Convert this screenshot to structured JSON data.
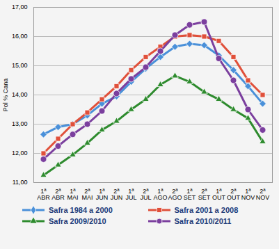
{
  "chart_data": {
    "type": "line",
    "y_label": "Pol % Cana",
    "categories": [
      "1ª\nABR",
      "2ª\nABR",
      "1ª\nMAI",
      "2ª\nMAI",
      "1ª\nJUN",
      "2ª\nJUN",
      "1ª\nJUL",
      "2ª\nJUL",
      "1ª\nAGO",
      "2ª\nAGO",
      "1ª\nSET",
      "2ª\nSET",
      "1ª\nOUT",
      "2ª\nOUT",
      "1ª\nNOV",
      "2ª\nNOV"
    ],
    "series": [
      {
        "name": "Safra 1984 a 2000",
        "color": "#4a90d9",
        "marker": "diamond",
        "values": [
          12.65,
          12.9,
          13.0,
          13.3,
          13.7,
          13.95,
          14.45,
          14.9,
          15.3,
          15.65,
          15.75,
          15.7,
          15.35,
          14.85,
          14.3,
          13.7
        ]
      },
      {
        "name": "Safra 2001 a 2008",
        "color": "#e0503a",
        "marker": "square",
        "values": [
          12.0,
          12.5,
          13.0,
          13.4,
          13.85,
          14.3,
          14.85,
          15.3,
          15.65,
          16.0,
          16.05,
          16.0,
          15.85,
          15.3,
          14.5,
          14.0
        ]
      },
      {
        "name": "Safra 2009/2010",
        "color": "#2e8b2e",
        "marker": "triangle",
        "values": [
          11.25,
          11.6,
          11.95,
          12.35,
          12.8,
          13.1,
          13.5,
          13.85,
          14.35,
          14.65,
          14.45,
          14.1,
          13.85,
          13.5,
          13.2,
          12.4
        ]
      },
      {
        "name": "Safra 2010/2011",
        "color": "#7b3f9e",
        "marker": "circle",
        "values": [
          11.8,
          12.25,
          12.65,
          13.0,
          13.45,
          14.05,
          14.55,
          14.95,
          15.5,
          16.05,
          16.4,
          16.5,
          15.25,
          14.5,
          13.5,
          12.8
        ]
      }
    ],
    "ylim": [
      11,
      17
    ],
    "yticks": [
      {
        "value": 11,
        "label": "11,00"
      },
      {
        "value": 12,
        "label": "12,00"
      },
      {
        "value": 13,
        "label": "13,00"
      },
      {
        "value": 14,
        "label": "14,00"
      },
      {
        "value": 15,
        "label": "15,00"
      },
      {
        "value": 16,
        "label": "16,00"
      },
      {
        "value": 17,
        "label": "17,00"
      }
    ],
    "grid": true,
    "legend": "bottom"
  }
}
